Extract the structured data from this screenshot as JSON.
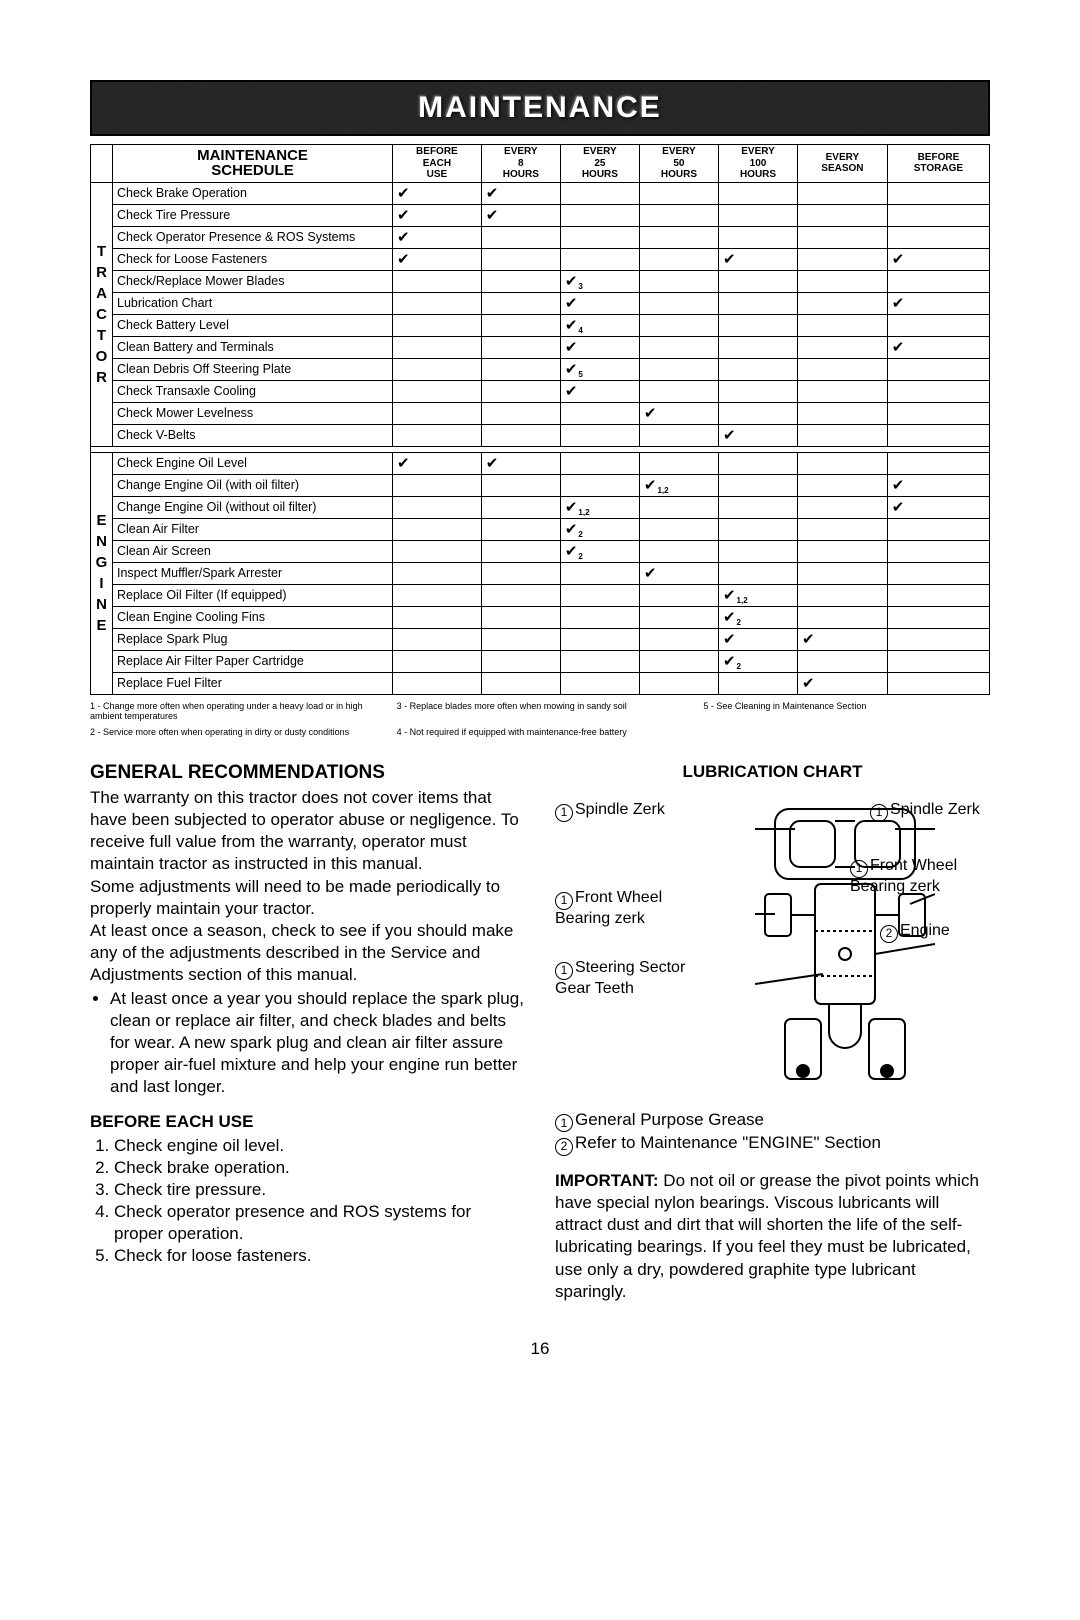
{
  "banner_title": "MAINTENANCE",
  "schedule": {
    "title_line1": "MAINTENANCE",
    "title_line2": "SCHEDULE",
    "cat1_letters": [
      "T",
      "R",
      "A",
      "C",
      "T",
      "O",
      "R"
    ],
    "cat2_letters": [
      "E",
      "N",
      "G",
      "I",
      "N",
      "E"
    ],
    "cols": [
      {
        "l1": "BEFORE",
        "l2": "EACH",
        "l3": "USE"
      },
      {
        "l1": "EVERY",
        "l2": "8",
        "l3": "HOURS"
      },
      {
        "l1": "EVERY",
        "l2": "25",
        "l3": "HOURS"
      },
      {
        "l1": "EVERY",
        "l2": "50",
        "l3": "HOURS"
      },
      {
        "l1": "EVERY",
        "l2": "100",
        "l3": "HOURS"
      },
      {
        "l1": "EVERY",
        "l2": "SEASON",
        "l3": ""
      },
      {
        "l1": "BEFORE",
        "l2": "STORAGE",
        "l3": ""
      }
    ],
    "tractor_rows": [
      {
        "task": "Check Brake Operation",
        "marks": [
          "c",
          "c",
          "",
          "",
          "",
          "",
          ""
        ]
      },
      {
        "task": "Check Tire Pressure",
        "marks": [
          "c",
          "c",
          "",
          "",
          "",
          "",
          ""
        ]
      },
      {
        "task": "Check Operator Presence & ROS Systems",
        "marks": [
          "c",
          "",
          "",
          "",
          "",
          "",
          ""
        ]
      },
      {
        "task": "Check for Loose Fasteners",
        "marks": [
          "c",
          "",
          "",
          "",
          "c",
          "",
          "c"
        ]
      },
      {
        "task": "Check/Replace Mower Blades",
        "marks": [
          "",
          "",
          "c3",
          "",
          "",
          "",
          ""
        ]
      },
      {
        "task": "Lubrication Chart",
        "marks": [
          "",
          "",
          "c",
          "",
          "",
          "",
          "c"
        ]
      },
      {
        "task": "Check Battery Level",
        "marks": [
          "",
          "",
          "c4",
          "",
          "",
          "",
          ""
        ]
      },
      {
        "task": "Clean Battery and Terminals",
        "marks": [
          "",
          "",
          "c",
          "",
          "",
          "",
          "c"
        ]
      },
      {
        "task": "Clean Debris Off Steering Plate",
        "marks": [
          "",
          "",
          "c5",
          "",
          "",
          "",
          ""
        ]
      },
      {
        "task": "Check Transaxle Cooling",
        "marks": [
          "",
          "",
          "c",
          "",
          "",
          "",
          ""
        ]
      },
      {
        "task": "Check Mower Levelness",
        "marks": [
          "",
          "",
          "",
          "c",
          "",
          "",
          ""
        ]
      },
      {
        "task": "Check V-Belts",
        "marks": [
          "",
          "",
          "",
          "",
          "c",
          "",
          ""
        ]
      }
    ],
    "engine_rows": [
      {
        "task": "Check Engine Oil Level",
        "marks": [
          "c",
          "c",
          "",
          "",
          "",
          "",
          ""
        ]
      },
      {
        "task": "Change Engine Oil (with oil filter)",
        "marks": [
          "",
          "",
          "",
          "c12",
          "",
          "",
          "c"
        ]
      },
      {
        "task": "Change Engine Oil (without oil filter)",
        "marks": [
          "",
          "",
          "c12",
          "",
          "",
          "",
          "c"
        ]
      },
      {
        "task": "Clean Air Filter",
        "marks": [
          "",
          "",
          "c2",
          "",
          "",
          "",
          ""
        ]
      },
      {
        "task": "Clean Air Screen",
        "marks": [
          "",
          "",
          "c2",
          "",
          "",
          "",
          ""
        ]
      },
      {
        "task": "Inspect Muffler/Spark Arrester",
        "marks": [
          "",
          "",
          "",
          "c",
          "",
          "",
          ""
        ]
      },
      {
        "task": "Replace Oil Filter (If equipped)",
        "marks": [
          "",
          "",
          "",
          "",
          "c12",
          "",
          ""
        ]
      },
      {
        "task": "Clean Engine Cooling Fins",
        "marks": [
          "",
          "",
          "",
          "",
          "c2",
          "",
          ""
        ]
      },
      {
        "task": "Replace Spark Plug",
        "marks": [
          "",
          "",
          "",
          "",
          "c",
          "c",
          ""
        ]
      },
      {
        "task": "Replace Air Filter Paper Cartridge",
        "marks": [
          "",
          "",
          "",
          "",
          "c2",
          "",
          ""
        ]
      },
      {
        "task": "Replace Fuel Filter",
        "marks": [
          "",
          "",
          "",
          "",
          "",
          "c",
          ""
        ]
      }
    ]
  },
  "footnotes": {
    "n1": "1 - Change more often when operating under a heavy load or in high ambient temperatures",
    "n2": "2 - Service more often when operating in dirty or dusty conditions",
    "n3": "3 - Replace blades more often when mowing in sandy soil",
    "n4": "4 - Not required if equipped with maintenance-free battery",
    "n5": "5 - See Cleaning in Maintenance Section"
  },
  "left": {
    "h_general": "GENERAL RECOMMENDATIONS",
    "p1": "The warranty on this tractor does not cover items that have been subjected to operator abuse or negligence. To receive full value from the warranty, operator must maintain tractor as instructed in this manual.",
    "p2": "Some adjustments will need to be made periodically to properly maintain your tractor.",
    "p3": "At least once a season, check to see if you should make any of the adjustments described in the Service and Adjustments section of this manual.",
    "bullet": "At least once a year you should replace the spark plug, clean or replace air filter, and check blades and belts for wear. A new spark plug and clean air filter assure proper air-fuel mixture and help your engine run better and last longer.",
    "h_before": "BEFORE EACH USE",
    "o1": "Check engine oil level.",
    "o2": "Check brake operation.",
    "o3": "Check tire pressure.",
    "o4": "Check operator presence and ROS systems for proper operation.",
    "o5": "Check for loose fasteners."
  },
  "right": {
    "h_lub": "LUBRICATION CHART",
    "l_spindleL": "Spindle Zerk",
    "l_spindleR": "Spindle Zerk",
    "l_fwL": "Front Wheel Bearing zerk",
    "l_fwR": "Front Wheel Bearing zerk",
    "l_engine": "Engine",
    "l_steer": "Steering Sector Gear Teeth",
    "legend1": "General Purpose Grease",
    "legend2": "Refer to Maintenance \"ENGINE\" Section",
    "imp_label": "IMPORTANT:",
    "imp_text": " Do not oil or grease the pivot points which have special nylon bearings. Viscous lubricants will attract dust and dirt that will shorten the life of the self-lubricating bearings. If you feel they must be lubricated, use only a dry, powdered graphite type lubricant sparingly."
  },
  "page_number": "16"
}
